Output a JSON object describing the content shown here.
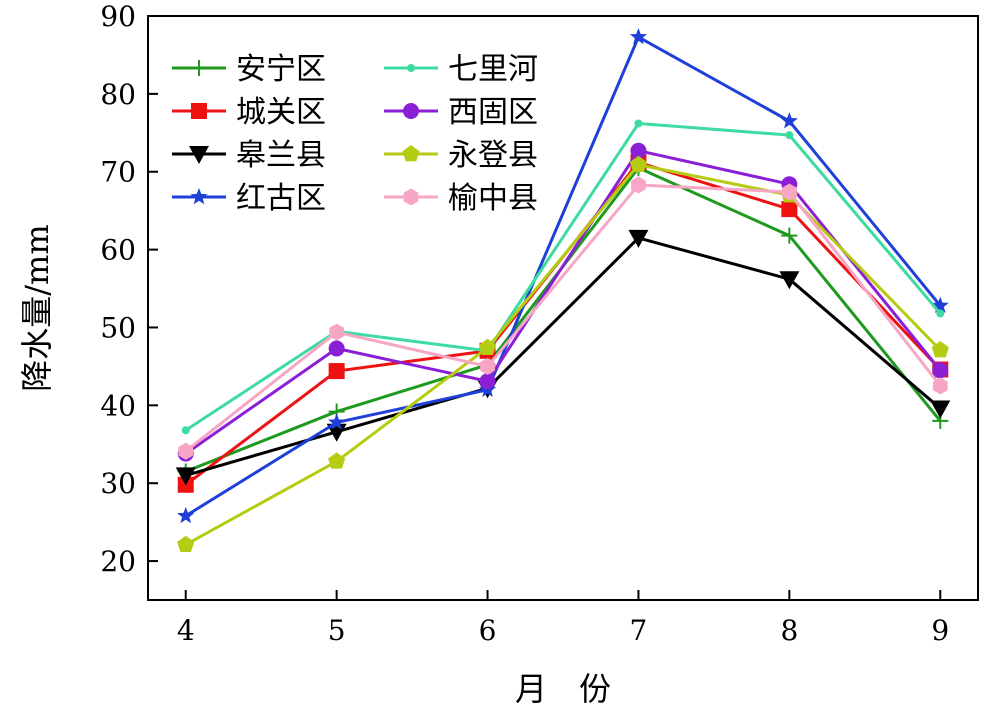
{
  "chart_data": {
    "type": "line",
    "xlabel": "月　份",
    "ylabel": "降水量/mm",
    "x": [
      4,
      5,
      6,
      7,
      8,
      9
    ],
    "xlim": [
      3.75,
      9.25
    ],
    "ylim": [
      15,
      90
    ],
    "yticks": [
      20,
      30,
      40,
      50,
      60,
      70,
      80,
      90
    ],
    "grid": false,
    "legend_position": "top-left",
    "series": [
      {
        "name": "安宁区",
        "color": "#1e9a1e",
        "marker": "plus",
        "values": [
          31.5,
          39.2,
          45.2,
          70.5,
          61.8,
          38.0
        ]
      },
      {
        "name": "城关区",
        "color": "#ee1111",
        "marker": "square",
        "values": [
          29.8,
          44.4,
          47.0,
          71.2,
          65.2,
          44.6
        ]
      },
      {
        "name": "皋兰县",
        "color": "#000000",
        "marker": "triangle-down",
        "values": [
          31.0,
          36.6,
          42.2,
          61.5,
          56.2,
          39.6
        ]
      },
      {
        "name": "红古区",
        "color": "#1f3fd9",
        "marker": "star",
        "values": [
          25.8,
          37.8,
          42.0,
          87.3,
          76.5,
          52.8
        ]
      },
      {
        "name": "七里河",
        "color": "#3ddba0",
        "marker": "dot",
        "values": [
          36.8,
          49.5,
          47.0,
          76.2,
          74.7,
          51.8
        ]
      },
      {
        "name": "西固区",
        "color": "#8a1fd6",
        "marker": "circle",
        "values": [
          33.8,
          47.3,
          43.1,
          72.7,
          68.4,
          44.5
        ]
      },
      {
        "name": "永登县",
        "color": "#b5cc12",
        "marker": "pentagon",
        "values": [
          22.1,
          32.8,
          47.4,
          70.9,
          67.0,
          47.1
        ]
      },
      {
        "name": "榆中县",
        "color": "#f7a6c6",
        "marker": "hexagon",
        "values": [
          34.1,
          49.4,
          45.0,
          68.3,
          67.4,
          42.5
        ]
      }
    ]
  }
}
